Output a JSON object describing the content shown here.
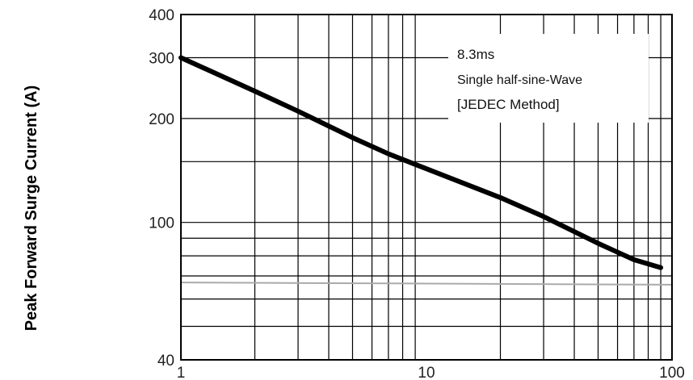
{
  "chart_data": {
    "type": "line",
    "title": "",
    "xlabel": "",
    "ylabel": "Peak Forward Surge Current (A)",
    "x_scale": "log",
    "y_scale": "log",
    "xlim": [
      1,
      100
    ],
    "ylim": [
      40,
      400
    ],
    "x_ticks": [
      "1",
      "10",
      "100"
    ],
    "y_ticks": [
      "400",
      "300",
      "200",
      "100",
      "40"
    ],
    "grid": true,
    "annotation": [
      "8.3ms",
      "Single half-sine-Wave",
      "[JEDEC Method]"
    ],
    "series": [
      {
        "x": [
          1,
          2,
          3,
          5,
          7,
          10,
          20,
          30,
          50,
          70,
          90
        ],
        "y": [
          300,
          240,
          210,
          176,
          158,
          143,
          118,
          104,
          87,
          78,
          74
        ],
        "color": "#000000"
      }
    ],
    "reference_lines": [
      {
        "x": [
          1,
          100
        ],
        "y": [
          67,
          66
        ],
        "color": "#aaaaaa"
      }
    ]
  }
}
